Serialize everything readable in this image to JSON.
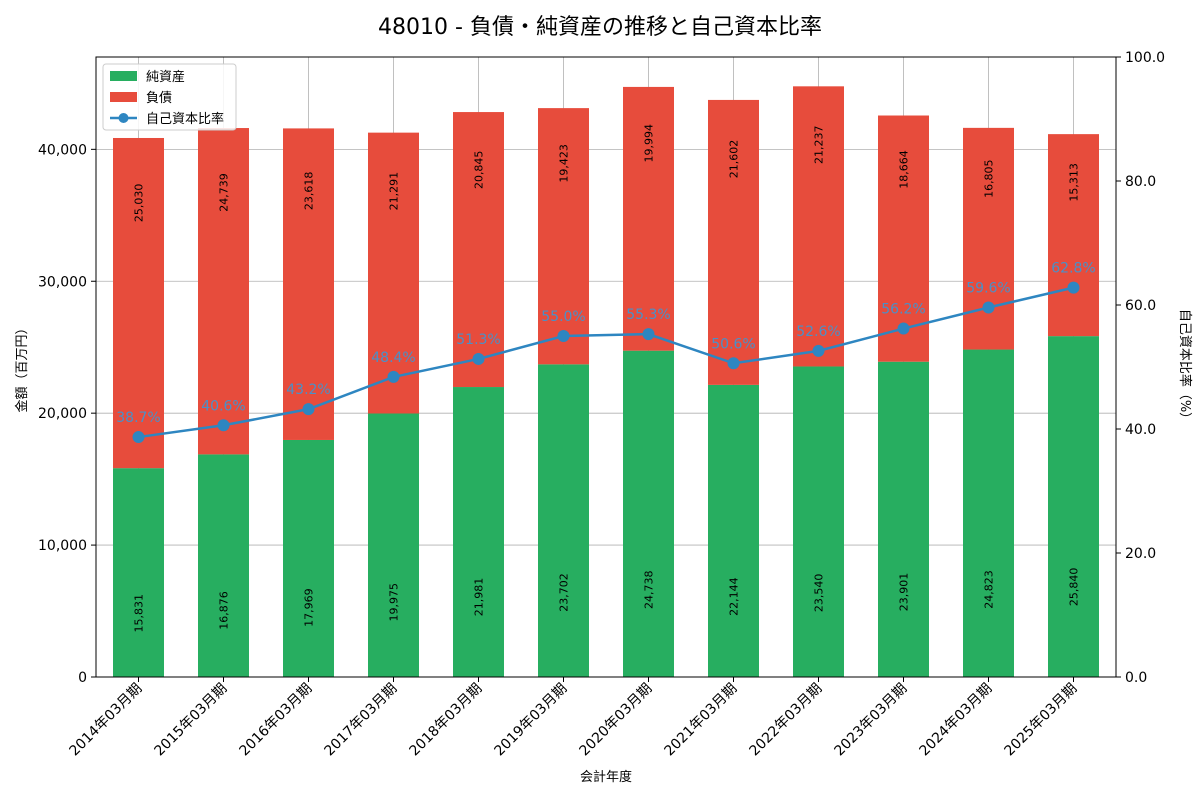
{
  "chart_data": {
    "type": "bar",
    "title": "48010 - 負債・純資産の推移と自己資本比率",
    "xlabel": "会計年度",
    "ylabel": "金額（百万円）",
    "y2label": "自己資本比率（%）",
    "ylim": [
      0,
      47000
    ],
    "y2lim": [
      0,
      100
    ],
    "yticks": [
      0,
      10000,
      20000,
      30000,
      40000
    ],
    "ytick_labels": [
      "0",
      "10,000",
      "20,000",
      "30,000",
      "40,000"
    ],
    "y2ticks": [
      0,
      20,
      40,
      60,
      80,
      100
    ],
    "y2tick_labels": [
      "0.0",
      "20.0",
      "40.0",
      "60.0",
      "80.0",
      "100.0"
    ],
    "grid": true,
    "legend_position": "top-left",
    "categories": [
      "2014年03月期",
      "2015年03月期",
      "2016年03月期",
      "2017年03月期",
      "2018年03月期",
      "2019年03月期",
      "2020年03月期",
      "2021年03月期",
      "2022年03月期",
      "2023年03月期",
      "2024年03月期",
      "2025年03月期"
    ],
    "series": [
      {
        "name": "純資産",
        "kind": "bar",
        "color": "#27ae60",
        "values": [
          15831,
          16876,
          17969,
          19975,
          21981,
          23702,
          24738,
          22144,
          23540,
          23901,
          24823,
          25840
        ],
        "labels": [
          "15,831",
          "16,876",
          "17,969",
          "19,975",
          "21,981",
          "23,702",
          "24,738",
          "22,144",
          "23,540",
          "23,901",
          "24,823",
          "25,840"
        ]
      },
      {
        "name": "負債",
        "kind": "bar",
        "color": "#e74c3c",
        "values": [
          25030,
          24739,
          23618,
          21291,
          20845,
          19423,
          19994,
          21602,
          21237,
          18664,
          16805,
          15313
        ],
        "labels": [
          "25,030",
          "24,739",
          "23,618",
          "21,291",
          "20,845",
          "19,423",
          "19,994",
          "21,602",
          "21,237",
          "18,664",
          "16,805",
          "15,313"
        ]
      },
      {
        "name": "自己資本比率",
        "kind": "line",
        "axis": "right",
        "color": "#2e86c1",
        "values": [
          38.7,
          40.6,
          43.2,
          48.4,
          51.3,
          55.0,
          55.3,
          50.6,
          52.6,
          56.2,
          59.6,
          62.8
        ],
        "labels": [
          "38.7%",
          "40.6%",
          "43.2%",
          "48.4%",
          "51.3%",
          "55.0%",
          "55.3%",
          "50.6%",
          "52.6%",
          "56.2%",
          "59.6%",
          "62.8%"
        ]
      }
    ]
  }
}
